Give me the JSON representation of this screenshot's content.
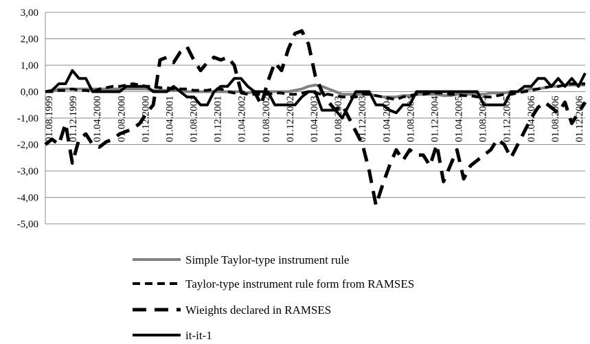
{
  "chart_data": {
    "type": "line",
    "title": "",
    "xlabel": "",
    "ylabel": "",
    "ylim": [
      -5,
      3
    ],
    "grid": true,
    "legend_position": "bottom",
    "y_ticks": [
      "3,00",
      "2,00",
      "1,00",
      "0,00",
      "-1,00",
      "-2,00",
      "-3,00",
      "-4,00",
      "-5,00"
    ],
    "x_tick_labels": [
      "01.08.1999",
      "01.12.1999",
      "01.04.2000",
      "01.08.2000",
      "01.12.2000",
      "01.04.2001",
      "01.08.2001",
      "01.12.2001",
      "01.04.2002",
      "01.08.2002",
      "01.12.2002",
      "01.04.2003",
      "01.08.2003",
      "01.12.2003",
      "01.04.2004",
      "01.08.2004",
      "01.12.2004",
      "01.04.2005",
      "01.08.2005",
      "01.12.2005",
      "01.04.2006",
      "01.08.2006",
      "01.12.2006"
    ],
    "series": [
      {
        "name": "Simple Taylor-type instrument rule",
        "color": "#808080",
        "dash": "solid",
        "values": [
          0.0,
          0.0,
          0.1,
          0.1,
          0.1,
          0.1,
          0.1,
          0.1,
          0.1,
          0.1,
          0.1,
          0.1,
          0.1,
          0.1,
          0.1,
          0.1,
          0.05,
          0.05,
          0.05,
          0.05,
          0.05,
          0.0,
          0.0,
          0.0,
          0.0,
          0.0,
          0.0,
          0.0,
          0.0,
          0.0,
          -0.05,
          0.0,
          0.0,
          0.0,
          0.0,
          0.0,
          0.0,
          0.05,
          0.1,
          0.2,
          0.25,
          0.2,
          0.1,
          0.0,
          -0.1,
          -0.1,
          -0.1,
          -0.1,
          -0.1,
          -0.15,
          -0.2,
          -0.2,
          -0.2,
          -0.15,
          -0.15,
          -0.1,
          -0.1,
          -0.1,
          -0.1,
          -0.15,
          -0.15,
          -0.1,
          -0.1,
          -0.1,
          -0.1,
          -0.1,
          -0.05,
          -0.05,
          -0.05,
          0.0,
          0.0,
          0.05,
          0.1,
          0.1,
          0.15,
          0.2,
          0.2,
          0.25,
          0.25,
          0.25,
          0.25
        ]
      },
      {
        "name": "Taylor-type instrument rule form from RAMSES",
        "color": "#000000",
        "dash": "short",
        "values": [
          0.0,
          0.0,
          0.05,
          0.05,
          0.1,
          0.05,
          0.05,
          0.0,
          0.1,
          0.15,
          0.2,
          0.2,
          0.25,
          0.3,
          0.25,
          0.2,
          0.2,
          0.15,
          0.15,
          0.1,
          0.1,
          0.1,
          0.05,
          0.05,
          0.05,
          0.1,
          0.1,
          0.0,
          -0.05,
          -0.05,
          -0.1,
          -0.1,
          -0.1,
          -0.1,
          -0.05,
          -0.05,
          -0.1,
          -0.1,
          -0.05,
          0.0,
          -0.05,
          -0.1,
          -0.1,
          -0.15,
          -0.2,
          -0.2,
          -0.2,
          -0.1,
          -0.1,
          -0.15,
          -0.2,
          -0.25,
          -0.3,
          -0.2,
          -0.15,
          -0.1,
          -0.1,
          -0.05,
          -0.05,
          -0.05,
          -0.1,
          -0.1,
          -0.15,
          -0.15,
          -0.2,
          -0.2,
          -0.2,
          -0.15,
          -0.1,
          -0.1,
          -0.05,
          0.0,
          0.05,
          0.1,
          0.15,
          0.2,
          0.2,
          0.25,
          0.3,
          0.3,
          0.3
        ]
      },
      {
        "name": "Wieights declared in RAMSES",
        "color": "#000000",
        "dash": "long",
        "values": [
          -2.0,
          -1.8,
          -2.0,
          -1.2,
          -2.7,
          -1.8,
          -1.6,
          -2.0,
          -2.1,
          -1.9,
          -1.8,
          -1.6,
          -1.5,
          -1.4,
          -1.2,
          -0.8,
          -0.5,
          1.2,
          1.3,
          1.1,
          1.5,
          1.7,
          1.2,
          0.8,
          1.1,
          1.3,
          1.2,
          1.3,
          1.0,
          0.0,
          -0.1,
          0.0,
          -0.5,
          0.4,
          1.1,
          0.8,
          1.6,
          2.2,
          2.3,
          1.8,
          0.6,
          0.0,
          -0.4,
          -0.7,
          -0.5,
          -1.0,
          -1.5,
          -2.0,
          -3.0,
          -4.3,
          -3.5,
          -2.8,
          -2.2,
          -2.6,
          -2.2,
          -2.4,
          -2.4,
          -2.8,
          -2.0,
          -3.4,
          -2.8,
          -2.2,
          -3.3,
          -2.8,
          -2.6,
          -2.4,
          -2.2,
          -1.8,
          -2.0,
          -2.5,
          -2.0,
          -1.5,
          -1.0,
          -0.6,
          -0.4,
          -0.6,
          -0.8,
          -0.4,
          -1.2,
          -0.8,
          -0.4
        ]
      },
      {
        "name": "it-it-1",
        "color": "#000000",
        "dash": "solid",
        "values": [
          0.0,
          0.05,
          0.3,
          0.3,
          0.8,
          0.5,
          0.5,
          0.0,
          0.0,
          0.0,
          0.0,
          0.0,
          0.2,
          0.2,
          0.2,
          0.2,
          0.0,
          0.0,
          0.0,
          0.2,
          0.0,
          -0.2,
          -0.2,
          -0.5,
          -0.5,
          0.0,
          0.2,
          0.2,
          0.5,
          0.5,
          0.2,
          0.0,
          0.0,
          0.0,
          -0.5,
          -0.5,
          -0.5,
          -0.5,
          -0.2,
          0.0,
          0.0,
          -0.7,
          -0.7,
          -0.7,
          -1.0,
          -0.5,
          0.0,
          0.0,
          0.0,
          -0.5,
          -0.5,
          -0.7,
          -0.8,
          -0.5,
          -0.5,
          0.0,
          0.0,
          0.0,
          0.0,
          0.0,
          0.0,
          0.0,
          0.0,
          0.0,
          0.0,
          -0.5,
          -0.5,
          -0.5,
          -0.5,
          0.0,
          0.0,
          0.2,
          0.2,
          0.5,
          0.5,
          0.2,
          0.5,
          0.2,
          0.5,
          0.2,
          0.7
        ]
      }
    ]
  }
}
